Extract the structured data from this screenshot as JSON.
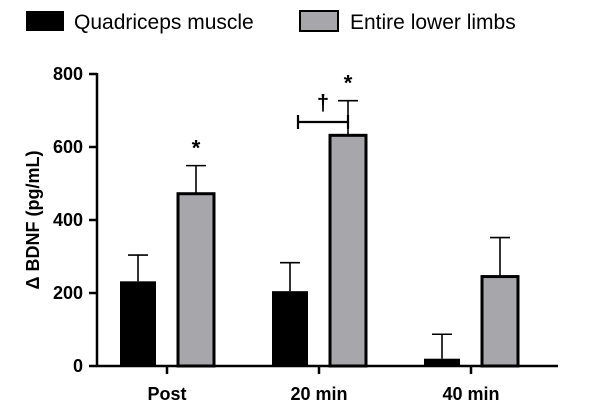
{
  "chart_data": {
    "type": "bar",
    "title": "",
    "xlabel": "",
    "ylabel": "Δ BDNF (pg/mL)",
    "ylim": [
      0,
      800
    ],
    "yticks": [
      0,
      200,
      400,
      600,
      800
    ],
    "categories": [
      "Post",
      "20 min",
      "40 min"
    ],
    "legend_position": "top",
    "series": [
      {
        "name": "Quadriceps muscle",
        "color": "#000000",
        "values": [
          232,
          205,
          20
        ],
        "error": [
          72,
          78,
          67
        ]
      },
      {
        "name": "Entire lower limbs",
        "color": "#a6a6ab",
        "values": [
          472,
          632,
          245
        ],
        "error": [
          77,
          95,
          107
        ]
      }
    ],
    "annotations": [
      {
        "text": "*",
        "category": "Post",
        "series": "Entire lower limbs"
      },
      {
        "text": "*",
        "category": "20 min",
        "series": "Entire lower limbs"
      },
      {
        "text": "†",
        "category": "20 min",
        "between": [
          "Quadriceps muscle",
          "Entire lower limbs"
        ]
      }
    ]
  }
}
